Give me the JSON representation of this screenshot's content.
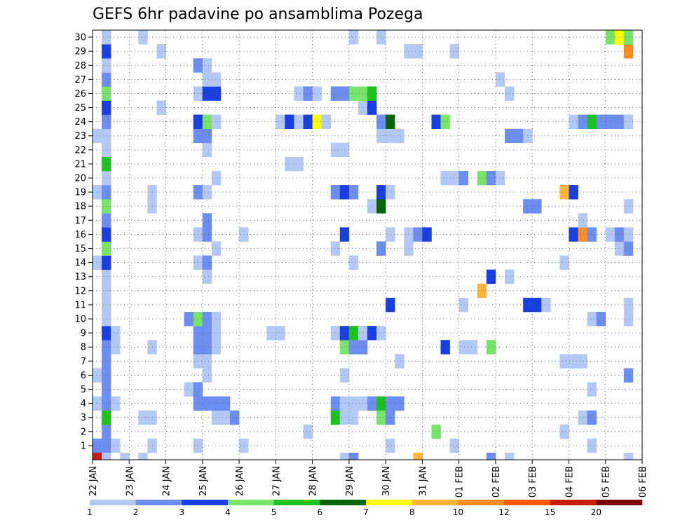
{
  "chart_data": {
    "type": "heatmap",
    "title": "GEFS 6hr padavine po ansamblima Pozega",
    "xlabel": "",
    "ylabel": "",
    "y_labels": [
      "1",
      "2",
      "3",
      "4",
      "5",
      "6",
      "7",
      "8",
      "9",
      "10",
      "11",
      "12",
      "13",
      "14",
      "15",
      "16",
      "17",
      "18",
      "19",
      "20",
      "21",
      "22",
      "23",
      "24",
      "25",
      "26",
      "27",
      "28",
      "29",
      "30"
    ],
    "x_labels": [
      "22 JAN",
      "23 JAN",
      "24 JAN",
      "25 JAN",
      "26 JAN",
      "27 JAN",
      "28 JAN",
      "29 JAN",
      "30 JAN",
      "31 JAN",
      "01 FEB",
      "02 FEB",
      "03 FEB",
      "04 FEB",
      "05 FEB",
      "06 FEB"
    ],
    "steps_per_day": 4,
    "grid": true,
    "legend": {
      "placement": "bottom",
      "thresholds": [
        "1",
        "2",
        "3",
        "4",
        "5",
        "6",
        "7",
        "8",
        "10",
        "12",
        "15",
        "20"
      ],
      "colors": [
        "#b4c8f5",
        "#6b8ef0",
        "#1a3fe0",
        "#78e46a",
        "#1ec21e",
        "#0a640a",
        "#ffff00",
        "#ffb43c",
        "#ff8c1e",
        "#f05a0a",
        "#c81e0a",
        "#78000a"
      ]
    },
    "cells": [
      [
        1,
        1,
        2
      ],
      [
        1,
        2,
        2
      ],
      [
        1,
        3,
        1
      ],
      [
        1,
        7,
        1
      ],
      [
        1,
        12,
        1
      ],
      [
        1,
        17,
        1
      ],
      [
        1,
        33,
        1
      ],
      [
        1,
        40,
        1
      ],
      [
        1,
        55,
        1
      ],
      [
        2,
        2,
        2
      ],
      [
        2,
        24,
        1
      ],
      [
        2,
        38,
        4
      ],
      [
        2,
        52,
        1
      ],
      [
        3,
        2,
        5
      ],
      [
        3,
        6,
        1
      ],
      [
        3,
        7,
        1
      ],
      [
        3,
        14,
        1
      ],
      [
        3,
        15,
        1
      ],
      [
        3,
        16,
        2
      ],
      [
        3,
        27,
        5
      ],
      [
        3,
        28,
        1
      ],
      [
        3,
        29,
        1
      ],
      [
        3,
        32,
        4
      ],
      [
        3,
        33,
        2
      ],
      [
        3,
        54,
        1
      ],
      [
        3,
        55,
        2
      ],
      [
        4,
        1,
        1
      ],
      [
        4,
        2,
        2
      ],
      [
        4,
        3,
        1
      ],
      [
        4,
        12,
        2
      ],
      [
        4,
        13,
        2
      ],
      [
        4,
        14,
        2
      ],
      [
        4,
        15,
        2
      ],
      [
        4,
        27,
        2
      ],
      [
        4,
        28,
        1
      ],
      [
        4,
        29,
        1
      ],
      [
        4,
        30,
        1
      ],
      [
        4,
        31,
        2
      ],
      [
        4,
        32,
        5
      ],
      [
        4,
        33,
        2
      ],
      [
        4,
        34,
        2
      ],
      [
        5,
        2,
        2
      ],
      [
        5,
        11,
        1
      ],
      [
        5,
        12,
        2
      ],
      [
        5,
        55,
        1
      ],
      [
        6,
        1,
        1
      ],
      [
        6,
        2,
        2
      ],
      [
        6,
        13,
        1
      ],
      [
        6,
        28,
        1
      ],
      [
        6,
        59,
        2
      ],
      [
        7,
        2,
        2
      ],
      [
        7,
        12,
        1
      ],
      [
        7,
        13,
        1
      ],
      [
        7,
        34,
        1
      ],
      [
        7,
        52,
        1
      ],
      [
        7,
        53,
        1
      ],
      [
        7,
        54,
        1
      ],
      [
        8,
        2,
        2
      ],
      [
        8,
        3,
        1
      ],
      [
        8,
        7,
        1
      ],
      [
        8,
        12,
        2
      ],
      [
        8,
        13,
        2
      ],
      [
        8,
        14,
        1
      ],
      [
        8,
        28,
        4
      ],
      [
        8,
        29,
        2
      ],
      [
        8,
        30,
        2
      ],
      [
        8,
        39,
        3
      ],
      [
        8,
        41,
        1
      ],
      [
        8,
        42,
        1
      ],
      [
        8,
        44,
        4
      ],
      [
        9,
        2,
        3
      ],
      [
        9,
        3,
        1
      ],
      [
        9,
        12,
        2
      ],
      [
        9,
        13,
        2
      ],
      [
        9,
        14,
        1
      ],
      [
        9,
        20,
        1
      ],
      [
        9,
        21,
        1
      ],
      [
        9,
        27,
        1
      ],
      [
        9,
        28,
        3
      ],
      [
        9,
        29,
        5
      ],
      [
        9,
        30,
        1
      ],
      [
        9,
        31,
        3
      ],
      [
        9,
        32,
        1
      ],
      [
        10,
        2,
        1
      ],
      [
        10,
        11,
        2
      ],
      [
        10,
        12,
        4
      ],
      [
        10,
        13,
        2
      ],
      [
        10,
        14,
        1
      ],
      [
        10,
        55,
        1
      ],
      [
        10,
        56,
        2
      ],
      [
        10,
        59,
        1
      ],
      [
        11,
        2,
        1
      ],
      [
        11,
        33,
        3
      ],
      [
        11,
        41,
        1
      ],
      [
        11,
        48,
        3
      ],
      [
        11,
        49,
        3
      ],
      [
        11,
        50,
        1
      ],
      [
        11,
        59,
        1
      ],
      [
        12,
        2,
        1
      ],
      [
        12,
        43,
        8
      ],
      [
        13,
        2,
        1
      ],
      [
        13,
        13,
        1
      ],
      [
        13,
        44,
        3
      ],
      [
        13,
        46,
        1
      ],
      [
        14,
        1,
        1
      ],
      [
        14,
        2,
        3
      ],
      [
        14,
        12,
        1
      ],
      [
        14,
        13,
        2
      ],
      [
        14,
        29,
        1
      ],
      [
        14,
        52,
        1
      ],
      [
        15,
        2,
        4
      ],
      [
        15,
        14,
        1
      ],
      [
        15,
        27,
        1
      ],
      [
        15,
        32,
        2
      ],
      [
        15,
        35,
        1
      ],
      [
        15,
        58,
        1
      ],
      [
        15,
        59,
        2
      ],
      [
        16,
        2,
        3
      ],
      [
        16,
        12,
        1
      ],
      [
        16,
        13,
        2
      ],
      [
        16,
        17,
        1
      ],
      [
        16,
        28,
        3
      ],
      [
        16,
        33,
        1
      ],
      [
        16,
        35,
        1
      ],
      [
        16,
        36,
        2
      ],
      [
        16,
        37,
        3
      ],
      [
        16,
        53,
        3
      ],
      [
        16,
        54,
        9
      ],
      [
        16,
        55,
        2
      ],
      [
        16,
        57,
        1
      ],
      [
        16,
        58,
        2
      ],
      [
        16,
        59,
        1
      ],
      [
        17,
        2,
        2
      ],
      [
        17,
        13,
        2
      ],
      [
        17,
        54,
        1
      ],
      [
        18,
        2,
        4
      ],
      [
        18,
        7,
        1
      ],
      [
        18,
        31,
        1
      ],
      [
        18,
        32,
        6
      ],
      [
        18,
        48,
        2
      ],
      [
        18,
        49,
        2
      ],
      [
        18,
        59,
        1
      ],
      [
        19,
        1,
        1
      ],
      [
        19,
        2,
        2
      ],
      [
        19,
        7,
        1
      ],
      [
        19,
        12,
        2
      ],
      [
        19,
        13,
        1
      ],
      [
        19,
        27,
        2
      ],
      [
        19,
        28,
        3
      ],
      [
        19,
        29,
        2
      ],
      [
        19,
        32,
        3
      ],
      [
        19,
        33,
        1
      ],
      [
        19,
        52,
        8
      ],
      [
        19,
        53,
        3
      ],
      [
        20,
        2,
        1
      ],
      [
        20,
        14,
        1
      ],
      [
        20,
        39,
        1
      ],
      [
        20,
        40,
        1
      ],
      [
        20,
        41,
        2
      ],
      [
        20,
        43,
        4
      ],
      [
        20,
        44,
        2
      ],
      [
        20,
        45,
        1
      ],
      [
        21,
        2,
        5
      ],
      [
        21,
        22,
        1
      ],
      [
        21,
        23,
        1
      ],
      [
        22,
        2,
        1
      ],
      [
        22,
        13,
        1
      ],
      [
        22,
        27,
        1
      ],
      [
        22,
        28,
        1
      ],
      [
        23,
        1,
        1
      ],
      [
        23,
        2,
        1
      ],
      [
        23,
        12,
        2
      ],
      [
        23,
        13,
        2
      ],
      [
        23,
        32,
        1
      ],
      [
        23,
        33,
        1
      ],
      [
        23,
        34,
        1
      ],
      [
        23,
        46,
        2
      ],
      [
        23,
        47,
        2
      ],
      [
        23,
        48,
        1
      ],
      [
        24,
        2,
        2
      ],
      [
        24,
        12,
        3
      ],
      [
        24,
        13,
        4
      ],
      [
        24,
        14,
        1
      ],
      [
        24,
        21,
        1
      ],
      [
        24,
        22,
        3
      ],
      [
        24,
        23,
        1
      ],
      [
        24,
        24,
        3
      ],
      [
        24,
        25,
        7
      ],
      [
        24,
        26,
        1
      ],
      [
        24,
        32,
        2
      ],
      [
        24,
        33,
        6
      ],
      [
        24,
        38,
        3
      ],
      [
        24,
        39,
        4
      ],
      [
        24,
        53,
        1
      ],
      [
        24,
        54,
        2
      ],
      [
        24,
        55,
        5
      ],
      [
        24,
        56,
        2
      ],
      [
        24,
        57,
        2
      ],
      [
        24,
        58,
        2
      ],
      [
        24,
        59,
        1
      ],
      [
        25,
        2,
        3
      ],
      [
        25,
        8,
        1
      ],
      [
        25,
        30,
        1
      ],
      [
        25,
        31,
        3
      ],
      [
        26,
        2,
        4
      ],
      [
        26,
        12,
        1
      ],
      [
        26,
        13,
        3
      ],
      [
        26,
        14,
        3
      ],
      [
        26,
        23,
        1
      ],
      [
        26,
        24,
        2
      ],
      [
        26,
        25,
        1
      ],
      [
        26,
        27,
        2
      ],
      [
        26,
        28,
        2
      ],
      [
        26,
        29,
        4
      ],
      [
        26,
        30,
        4
      ],
      [
        26,
        31,
        5
      ],
      [
        26,
        46,
        1
      ],
      [
        27,
        2,
        2
      ],
      [
        27,
        13,
        1
      ],
      [
        27,
        14,
        1
      ],
      [
        27,
        45,
        1
      ],
      [
        28,
        2,
        1
      ],
      [
        28,
        12,
        2
      ],
      [
        28,
        13,
        1
      ],
      [
        29,
        2,
        3
      ],
      [
        29,
        8,
        1
      ],
      [
        29,
        35,
        1
      ],
      [
        29,
        36,
        1
      ],
      [
        29,
        40,
        1
      ],
      [
        29,
        59,
        9
      ],
      [
        30,
        2,
        1
      ],
      [
        30,
        6,
        1
      ],
      [
        30,
        29,
        1
      ],
      [
        30,
        32,
        1
      ],
      [
        30,
        57,
        4
      ],
      [
        30,
        58,
        7
      ],
      [
        30,
        59,
        4
      ]
    ],
    "bottom_strip": [
      [
        1,
        1,
        11
      ],
      [
        2,
        1,
        1
      ],
      [
        4,
        1,
        1
      ],
      [
        6,
        1,
        1
      ],
      [
        28,
        1,
        1
      ],
      [
        29,
        1,
        2
      ],
      [
        36,
        1,
        8
      ],
      [
        44,
        1,
        2
      ],
      [
        46,
        1,
        1
      ],
      [
        59,
        1,
        1
      ]
    ]
  }
}
